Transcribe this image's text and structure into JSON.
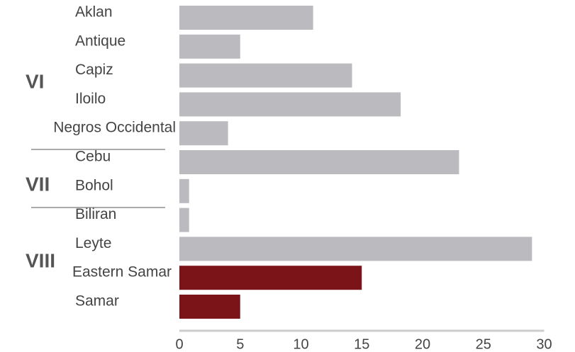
{
  "chart_data": {
    "type": "bar",
    "orientation": "horizontal",
    "categories": [
      "Aklan",
      "Antique",
      "Capiz",
      "Iloilo",
      "Negros Occidental",
      "Cebu",
      "Bohol",
      "Biliran",
      "Leyte",
      "Eastern Samar",
      "Samar"
    ],
    "values": [
      11,
      5,
      14.2,
      18.2,
      4,
      23,
      0.8,
      0.8,
      29,
      15,
      5
    ],
    "bar_colors": [
      "#bbbbbf",
      "#bbbbbf",
      "#bbbbbf",
      "#bbbbbf",
      "#bbbbbf",
      "#bbbbbf",
      "#bbbbbf",
      "#bbbbbf",
      "#bbbbbf",
      "#7b1419",
      "#7b1419"
    ],
    "groups": [
      {
        "label": "VI",
        "members": [
          "Aklan",
          "Antique",
          "Capiz",
          "Iloilo",
          "Negros Occidental"
        ]
      },
      {
        "label": "VII",
        "members": [
          "Cebu",
          "Bohol"
        ]
      },
      {
        "label": "VIII",
        "members": [
          "Biliran",
          "Leyte",
          "Eastern Samar",
          "Samar"
        ]
      }
    ],
    "xlim": [
      0,
      30
    ],
    "xticks": [
      0,
      5,
      10,
      15,
      20,
      25,
      30
    ],
    "title": "",
    "xlabel": "",
    "ylabel": "",
    "grid": false,
    "legend": "none"
  }
}
